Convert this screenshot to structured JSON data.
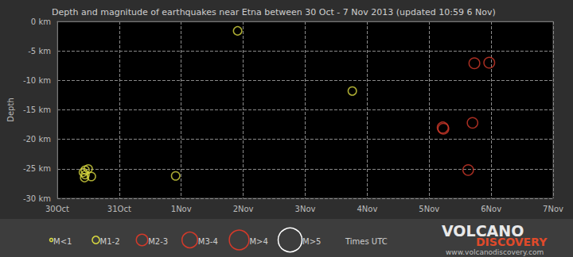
{
  "chart_data": {
    "type": "scatter",
    "title": "Depth and magnitude of earthquakes near Etna between 30 Oct - 7 Nov 2013 (updated 10:59 6 Nov)",
    "y_label": "Depth",
    "xlim": [
      0,
      8
    ],
    "xticks": [
      {
        "value": 0,
        "label": "30Oct"
      },
      {
        "value": 1,
        "label": "31Oct"
      },
      {
        "value": 2,
        "label": "1Nov"
      },
      {
        "value": 3,
        "label": "2Nov"
      },
      {
        "value": 4,
        "label": "3Nov"
      },
      {
        "value": 5,
        "label": "4Nov"
      },
      {
        "value": 6,
        "label": "5Nov"
      },
      {
        "value": 7,
        "label": "6Nov"
      },
      {
        "value": 8,
        "label": "7Nov"
      }
    ],
    "ylim": [
      -30,
      0
    ],
    "yticks": [
      {
        "value": -30,
        "label": "-30 km"
      },
      {
        "value": -25,
        "label": "-25 km"
      },
      {
        "value": -20,
        "label": "-20 km"
      },
      {
        "value": -15,
        "label": "-15 km"
      },
      {
        "value": -10,
        "label": "-10 km"
      },
      {
        "value": -5,
        "label": "-5 km"
      },
      {
        "value": 0,
        "label": "0 km"
      }
    ],
    "grid": true,
    "legend": "bottom",
    "series": [
      {
        "name": "M<1",
        "color": "#d8d840",
        "marker": "circle-open",
        "x": [],
        "values": [],
        "magnitude": []
      },
      {
        "name": "M1-2",
        "color": "#d8d840",
        "marker": "circle-open",
        "x": [
          0.45,
          0.5,
          0.42,
          0.45,
          0.55,
          0.44,
          1.91,
          2.91,
          4.76
        ],
        "values": [
          -25.2,
          -25.0,
          -25.6,
          -26.0,
          -26.3,
          -26.5,
          -26.2,
          -1.6,
          -11.8
        ],
        "magnitude": [
          1.4,
          1.4,
          1.4,
          1.4,
          1.5,
          1.4,
          1.5,
          1.5,
          1.5
        ]
      },
      {
        "name": "M2-3",
        "color": "#d33a2a",
        "marker": "circle-open",
        "x": [
          6.22,
          6.23,
          6.73,
          6.97,
          6.7,
          6.63
        ],
        "values": [
          -18.0,
          -18.2,
          -7.1,
          -7.0,
          -17.2,
          -25.2
        ],
        "magnitude": [
          2.6,
          2.5,
          2.5,
          2.5,
          2.4,
          2.4
        ]
      },
      {
        "name": "M3-4",
        "color": "#d33a2a",
        "marker": "circle-open",
        "x": [],
        "values": [],
        "magnitude": []
      },
      {
        "name": "M>4",
        "color": "#d33a2a",
        "marker": "circle-open",
        "x": [],
        "values": [],
        "magnitude": []
      },
      {
        "name": "M>5",
        "color": "#ffffff",
        "marker": "circle-open",
        "x": [],
        "values": [],
        "magnitude": []
      }
    ],
    "note": "Times UTC",
    "logo": [
      "VOLCANO",
      "DISCOVERY"
    ],
    "url": "www.volcanodiscovery.com"
  }
}
